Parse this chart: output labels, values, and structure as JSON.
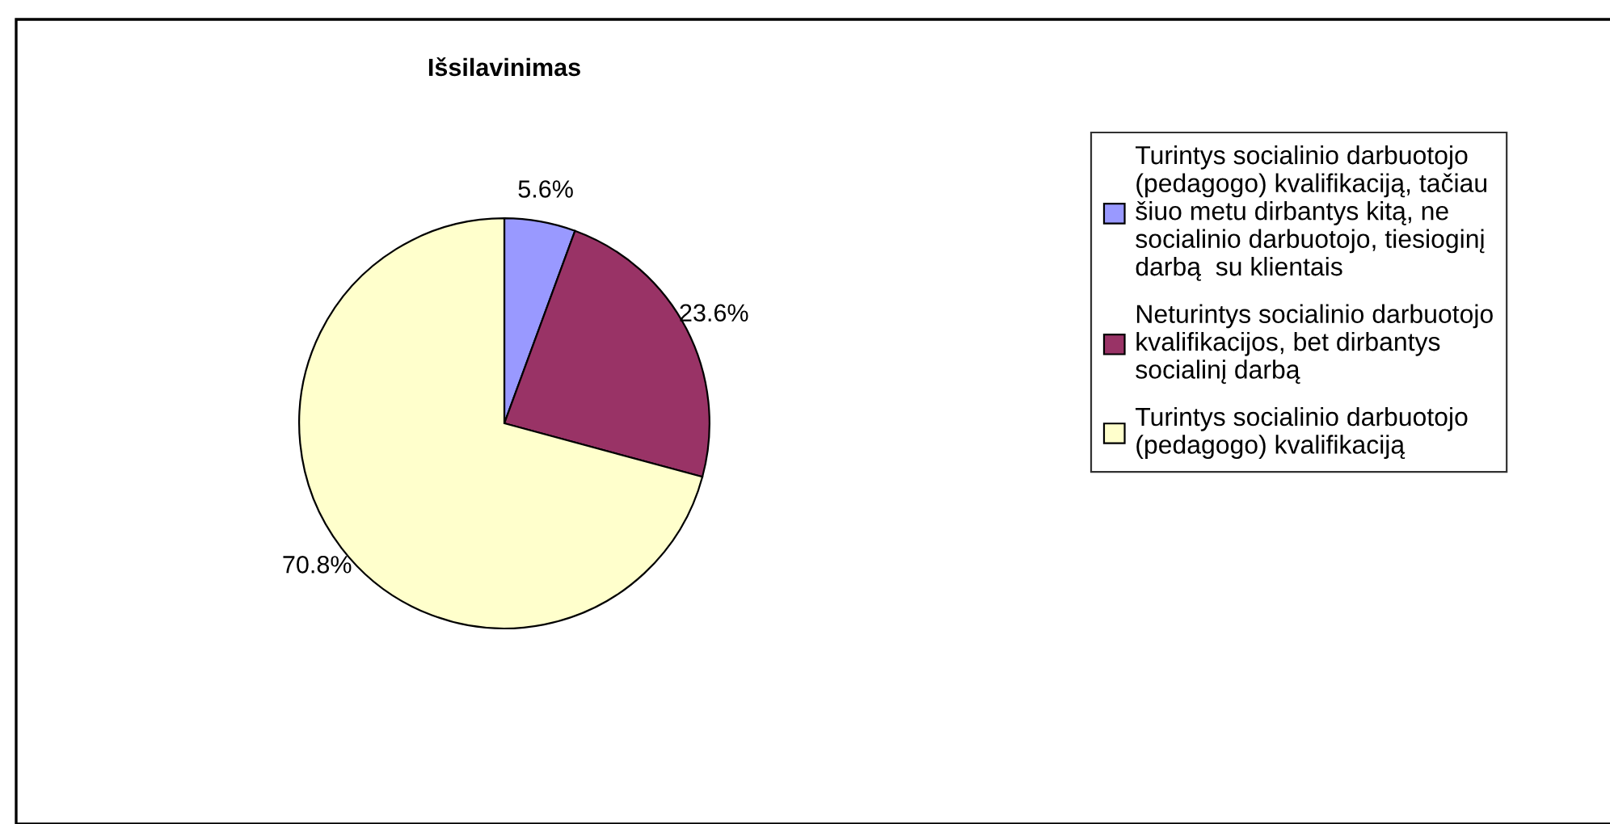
{
  "chart_data": {
    "type": "pie",
    "title": "Išsilavinimas",
    "categories": [
      "Turintys socialinio darbuotojo\n(pedagogo) kvalifikaciją, tačiau\nšiuo metu dirbantys kitą, ne\nsocialinio darbuotojo, tiesioginį\ndarbą  su klientais",
      "Neturintys socialinio darbuotojo\nkvalifikacijos, bet dirbantys\nsocialinį darbą",
      "Turintys socialinio darbuotojo\n(pedagogo) kvalifikaciją"
    ],
    "values": [
      5.6,
      23.6,
      70.8
    ],
    "colors": [
      "#9999ff",
      "#993366",
      "#ffffcc"
    ],
    "value_labels": [
      "5.6%",
      "23.6%",
      "70.8%"
    ],
    "legend": "right"
  }
}
